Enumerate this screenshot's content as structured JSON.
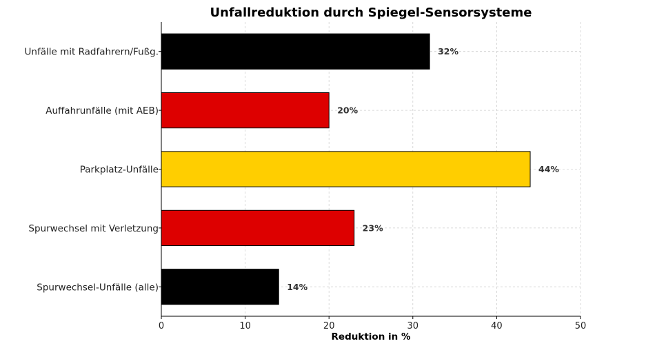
{
  "chart_data": {
    "type": "bar",
    "orientation": "horizontal",
    "title": "Unfallreduktion durch Spiegel-Sensorsysteme",
    "xlabel": "Reduktion in %",
    "ylabel": "",
    "xlim": [
      0,
      50
    ],
    "xticks": [
      0,
      10,
      20,
      30,
      40,
      50
    ],
    "grid": true,
    "categories": [
      "Unfälle mit Radfahrern/Fußg.",
      "Auffahrunfälle (mit AEB)",
      "Parkplatz-Unfälle",
      "Spurwechsel mit Verletzung",
      "Spurwechsel-Unfälle (alle)"
    ],
    "values": [
      32,
      20,
      44,
      23,
      14
    ],
    "value_labels": [
      "32%",
      "20%",
      "44%",
      "23%",
      "14%"
    ],
    "colors": [
      "#000000",
      "#dd0000",
      "#ffce00",
      "#dd0000",
      "#000000"
    ]
  }
}
